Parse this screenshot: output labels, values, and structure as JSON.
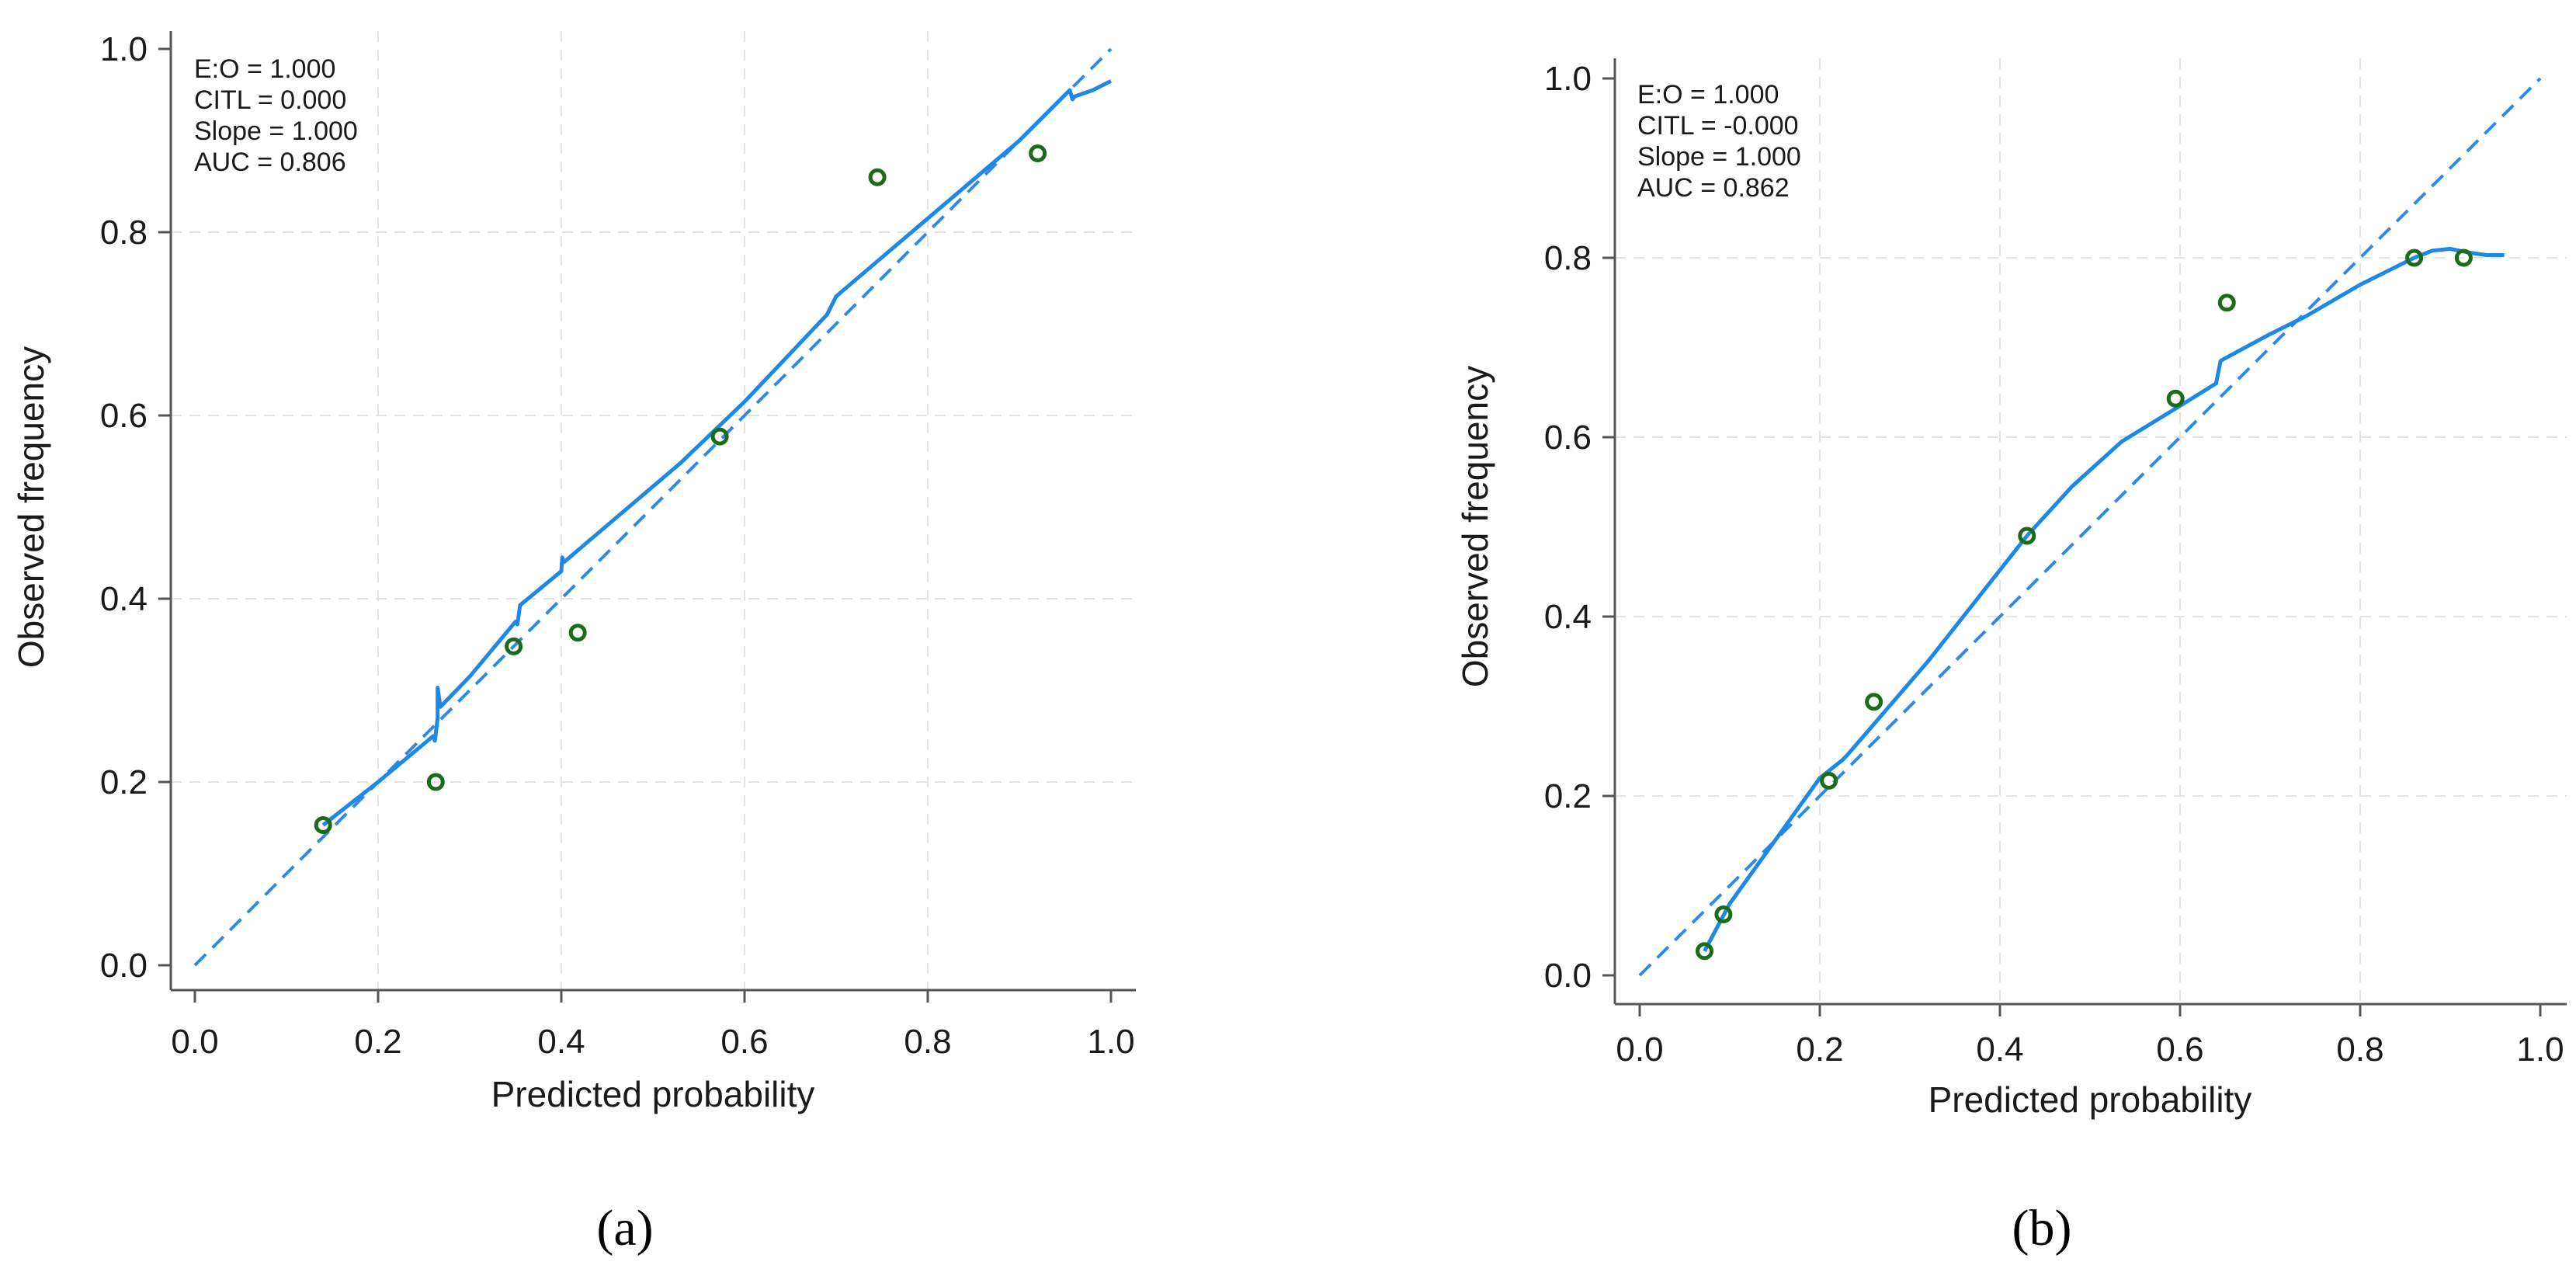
{
  "colors": {
    "curve": "#1e88e5",
    "reference": "#2e8ae6",
    "marker_stroke": "#1b6b1b",
    "grid": "#e3e3e3",
    "axis": "#555555"
  },
  "chart_data": [
    {
      "type": "line",
      "panel_label": "(a)",
      "xlabel": "Predicted probability",
      "ylabel": "Observed frequency",
      "xlim": [
        0,
        1
      ],
      "ylim": [
        0,
        1
      ],
      "xticks": [
        "0.0",
        "0.2",
        "0.4",
        "0.6",
        "0.8",
        "1.0"
      ],
      "yticks": [
        "0.0",
        "0.2",
        "0.4",
        "0.6",
        "0.8",
        "1.0"
      ],
      "grid": true,
      "annotations": [
        "E:O = 1.000",
        "CITL = 0.000",
        "Slope = 1.000",
        "AUC = 0.806"
      ],
      "series": [
        {
          "name": "reference",
          "style": "dashed",
          "x": [
            0,
            1
          ],
          "y": [
            0,
            1
          ]
        },
        {
          "name": "smoothed calibration",
          "style": "solid",
          "x": [
            0.14,
            0.2,
            0.26,
            0.262,
            0.265,
            0.265,
            0.268,
            0.3,
            0.35,
            0.352,
            0.355,
            0.4,
            0.401,
            0.403,
            0.45,
            0.53,
            0.6,
            0.69,
            0.695,
            0.7,
            0.8,
            0.9,
            0.955,
            0.958,
            0.96,
            0.98,
            1.0
          ],
          "y": [
            0.153,
            0.2,
            0.25,
            0.245,
            0.27,
            0.303,
            0.282,
            0.315,
            0.375,
            0.372,
            0.393,
            0.43,
            0.445,
            0.44,
            0.48,
            0.548,
            0.615,
            0.71,
            0.72,
            0.73,
            0.815,
            0.9,
            0.955,
            0.945,
            0.948,
            0.955,
            0.965
          ]
        },
        {
          "name": "grouped observations",
          "style": "markers",
          "x": [
            0.14,
            0.263,
            0.348,
            0.418,
            0.573,
            0.745,
            0.92
          ],
          "y": [
            0.153,
            0.2,
            0.348,
            0.363,
            0.577,
            0.86,
            0.886
          ]
        }
      ]
    },
    {
      "type": "line",
      "panel_label": "(b)",
      "xlabel": "Predicted probability",
      "ylabel": "Observed frequency",
      "xlim": [
        0,
        1
      ],
      "ylim": [
        0,
        1
      ],
      "xticks": [
        "0.0",
        "0.2",
        "0.4",
        "0.6",
        "0.8",
        "1.0"
      ],
      "yticks": [
        "0.0",
        "0.2",
        "0.4",
        "0.6",
        "0.8",
        "1.0"
      ],
      "grid": true,
      "annotations": [
        "E:O = 1.000",
        "CITL = -0.000",
        "Slope = 1.000",
        "AUC = 0.862"
      ],
      "series": [
        {
          "name": "reference",
          "style": "dashed",
          "x": [
            0,
            1
          ],
          "y": [
            0,
            1
          ]
        },
        {
          "name": "smoothed calibration",
          "style": "solid",
          "x": [
            0.072,
            0.1,
            0.15,
            0.2,
            0.225,
            0.23,
            0.32,
            0.43,
            0.48,
            0.535,
            0.6,
            0.64,
            0.645,
            0.65,
            0.7,
            0.74,
            0.8,
            0.86,
            0.88,
            0.9,
            0.92,
            0.94,
            0.96
          ],
          "y": [
            0.027,
            0.08,
            0.15,
            0.22,
            0.24,
            0.245,
            0.35,
            0.49,
            0.545,
            0.595,
            0.635,
            0.66,
            0.685,
            0.688,
            0.715,
            0.735,
            0.77,
            0.8,
            0.808,
            0.81,
            0.806,
            0.803,
            0.803
          ]
        },
        {
          "name": "grouped observations",
          "style": "markers",
          "x": [
            0.072,
            0.093,
            0.21,
            0.26,
            0.43,
            0.595,
            0.652,
            0.86,
            0.915
          ],
          "y": [
            0.027,
            0.068,
            0.217,
            0.305,
            0.49,
            0.643,
            0.75,
            0.8,
            0.8
          ]
        }
      ]
    }
  ]
}
